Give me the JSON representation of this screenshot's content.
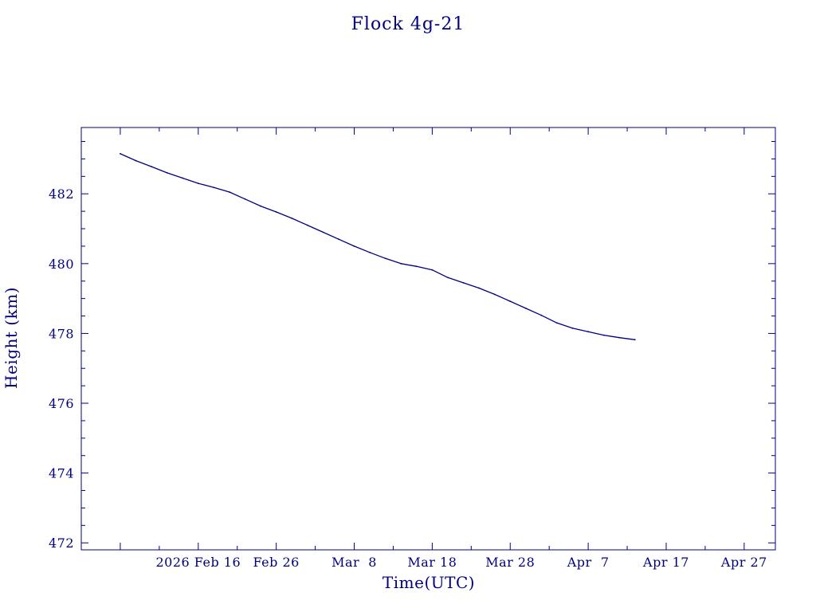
{
  "colors": {
    "ink": "#00007f",
    "background": "#ffffff"
  },
  "chart_data": {
    "type": "line",
    "title": "Flock 4g-21",
    "xlabel": "Time(UTC)",
    "ylabel": "Height (km)",
    "x_unit": "date (UTC)",
    "xlim": [
      "2026-02-01",
      "2026-05-01"
    ],
    "ylim": [
      471.8,
      483.9
    ],
    "x_tick_labels": [
      {
        "date": "2026-02-16",
        "label": "2026 Feb 16"
      },
      {
        "date": "2026-02-26",
        "label": "Feb 26"
      },
      {
        "date": "2026-03-08",
        "label": "Mar  8"
      },
      {
        "date": "2026-03-18",
        "label": "Mar 18"
      },
      {
        "date": "2026-03-28",
        "label": "Mar 28"
      },
      {
        "date": "2026-04-07",
        "label": "Apr  7"
      },
      {
        "date": "2026-04-17",
        "label": "Apr 17"
      },
      {
        "date": "2026-04-27",
        "label": "Apr 27"
      }
    ],
    "y_major_ticks": [
      472,
      474,
      476,
      478,
      480,
      482
    ],
    "y_tick_labels": [
      "472",
      "474",
      "476",
      "478",
      "480",
      "482"
    ],
    "grid": false,
    "series": [
      {
        "x": [
          "2026-02-06",
          "2026-02-08",
          "2026-02-10",
          "2026-02-12",
          "2026-02-14",
          "2026-02-16",
          "2026-02-18",
          "2026-02-20",
          "2026-02-22",
          "2026-02-24",
          "2026-02-26",
          "2026-02-28",
          "2026-03-02",
          "2026-03-04",
          "2026-03-06",
          "2026-03-08",
          "2026-03-10",
          "2026-03-12",
          "2026-03-14",
          "2026-03-16",
          "2026-03-18",
          "2026-03-20",
          "2026-03-22",
          "2026-03-24",
          "2026-03-26",
          "2026-03-28",
          "2026-03-30",
          "2026-04-01",
          "2026-04-03",
          "2026-04-05",
          "2026-04-07",
          "2026-04-09",
          "2026-04-11",
          "2026-04-13"
        ],
        "y": [
          483.15,
          482.95,
          482.78,
          482.6,
          482.45,
          482.3,
          482.18,
          482.05,
          481.85,
          481.65,
          481.48,
          481.3,
          481.1,
          480.9,
          480.7,
          480.5,
          480.32,
          480.15,
          480.0,
          479.92,
          479.82,
          479.6,
          479.45,
          479.3,
          479.12,
          478.92,
          478.72,
          478.52,
          478.3,
          478.15,
          478.05,
          477.95,
          477.88,
          477.82
        ]
      }
    ]
  }
}
